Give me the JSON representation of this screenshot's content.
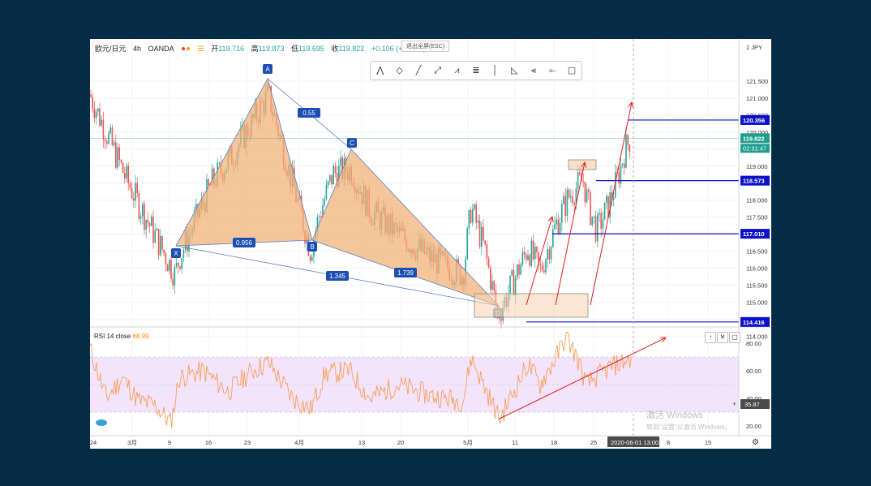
{
  "header": {
    "symbol": "欧元/日元",
    "interval": "4h",
    "broker": "OANDA",
    "open_label": "开",
    "open": "119.716",
    "high_label": "高",
    "high": "119.873",
    "low_label": "低",
    "low": "119.695",
    "close_label": "收",
    "close": "119.822",
    "change": "+0.106",
    "change_pct": "(+0.09%)",
    "exit_fullscreen": "退出全屏(ESC)"
  },
  "toolbar_icons": [
    "xabcd-pattern-icon",
    "cypher-pattern-icon",
    "trend-line-icon",
    "ray-icon",
    "head-shoulders-icon",
    "fib-icon",
    "vertical-line-icon",
    "triangle-pattern-icon",
    "fan-icon",
    "horizontal-ray-icon",
    "rectangle-icon"
  ],
  "price_axis": {
    "currency": "JPY",
    "ticks": [
      "121.500",
      "121.000",
      "120.500",
      "120.000",
      "119.500",
      "119.000",
      "118.500",
      "118.000",
      "117.500",
      "117.000",
      "116.500",
      "116.000",
      "115.500",
      "115.000",
      "114.500",
      "114.000"
    ],
    "ticks_values": [
      121.5,
      121.0,
      120.5,
      120.0,
      119.5,
      119.0,
      118.5,
      118.0,
      117.5,
      117.0,
      116.5,
      116.0,
      115.5,
      115.0,
      114.5,
      114.0
    ],
    "labels": [
      {
        "value": 120.356,
        "text": "120.356",
        "color": "#0d10c9"
      },
      {
        "value": 119.822,
        "text": "119.822",
        "color": "#1e9e8e"
      },
      {
        "value": 118.573,
        "text": "118.573",
        "color": "#0d10c9"
      },
      {
        "value": 117.01,
        "text": "117.010",
        "color": "#0d10c9"
      },
      {
        "value": 114.416,
        "text": "114.416",
        "color": "#0d10c9"
      }
    ],
    "countdown": "02:31:47"
  },
  "time_axis": {
    "labels": [
      "24",
      "3月",
      "9",
      "16",
      "23",
      "4月",
      "13",
      "20",
      "5月",
      "11",
      "18",
      "25",
      "8",
      "15"
    ],
    "cursor_date": "2020-06-01",
    "cursor_time": "13:00"
  },
  "rsi": {
    "label": "RSI 14 close",
    "value": "68.99",
    "axis_ticks": [
      "80.00",
      "60.00",
      "40.00",
      "20.00"
    ],
    "axis_values": [
      80,
      60,
      40,
      20
    ],
    "cursor_value": "35.87",
    "band": [
      30,
      70
    ]
  },
  "pattern": {
    "points": {
      "X": "X",
      "A": "A",
      "B": "B",
      "C": "C",
      "D": "D"
    },
    "ratios": {
      "xb": "0.956",
      "ac": "0.55",
      "bd": "1.739",
      "xd": "1.345"
    }
  },
  "watermark": {
    "line1": "激活 Windows",
    "line2": "转到\"设置\"以激活 Windows。"
  },
  "colors": {
    "up": "#26a69a",
    "down": "#ef5350",
    "pattern_fill": "#f2b27a",
    "pattern_line": "#5b7fc7",
    "level_line": "#0d10c9",
    "arrow": "#e31b1b",
    "rsi_line": "#f5a05a",
    "rsi_band": "#f3e3fb"
  },
  "chart_data": {
    "type": "candlestick",
    "symbol": "欧元/日元",
    "ylim": [
      113.8,
      122.0
    ],
    "horizontal_levels": [
      120.356,
      118.573,
      117.01,
      114.416
    ],
    "harmonic_points": {
      "X": {
        "date": "03-09",
        "price": 116.1
      },
      "A": {
        "date": "03-25",
        "price": 121.15
      },
      "B": {
        "date": "04-06",
        "price": 116.4
      },
      "C": {
        "date": "04-10",
        "price": 119.0
      },
      "D": {
        "date": "05-06",
        "price": 114.4
      }
    }
  }
}
